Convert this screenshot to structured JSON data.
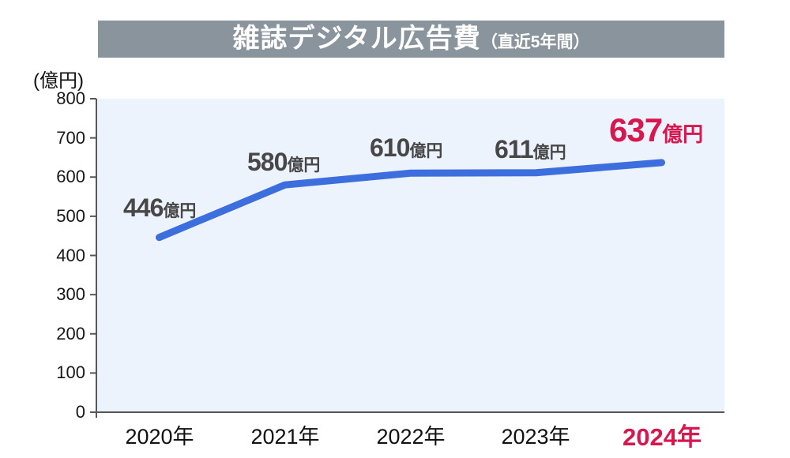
{
  "header": {
    "title": "雑誌デジタル広告費",
    "subtitle": "（直近5年間）",
    "bar_color": "#8a949c",
    "text_color": "#ffffff"
  },
  "axis": {
    "unit_label": "(億円)"
  },
  "chart_data": {
    "type": "line",
    "title": "雑誌デジタル広告費（直近5年間）",
    "categories": [
      "2020年",
      "2021年",
      "2022年",
      "2023年",
      "2024年"
    ],
    "values": [
      446,
      580,
      610,
      611,
      637
    ],
    "value_unit": "億円",
    "yticks": [
      800,
      700,
      600,
      500,
      400,
      300,
      200,
      100,
      0
    ],
    "ylim": [
      0,
      800
    ],
    "ylabel": "(億円)",
    "xlabel": "",
    "grid": false,
    "legend_position": "none",
    "line_color": "#3c6edd",
    "line_width": 9,
    "highlight_index": 4,
    "highlight_color": "#d8174e",
    "label_color": "#474747",
    "plot_bg": "#edf3fc",
    "axis_color": "#54585b"
  }
}
